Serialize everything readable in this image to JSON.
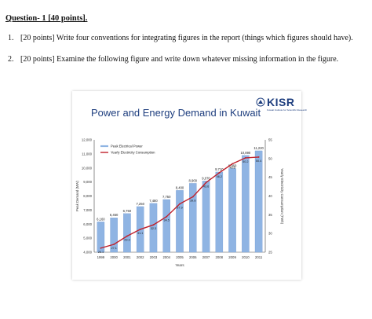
{
  "heading": "Question- 1 [40 points].",
  "questions": [
    {
      "num": "1.",
      "text": "[20 points] Write four conventions for integrating figures in the report (things which figures should have)."
    },
    {
      "num": "2.",
      "text": "[20 points] Examine the following figure and write down whatever missing information in the figure."
    }
  ],
  "figure": {
    "logo_text": "KISR",
    "logo_subtext": "Kuwait Institute for Scientific Research",
    "colors": {
      "bar": "#8fb4e3",
      "line": "#c0202a",
      "title": "#1f3f7f"
    }
  },
  "chart_data": {
    "type": "bar",
    "title": "Power and Energy Demand in Kuwait",
    "xlabel": "Years",
    "ylabel": "Peak Demand (MW)",
    "y2label": "Yearly Electricity Consumption (TWh)",
    "categories": [
      "1999",
      "2000",
      "2001",
      "2002",
      "2003",
      "2004",
      "2005",
      "2006",
      "2007",
      "2008",
      "2009",
      "2010",
      "2011"
    ],
    "ylim": [
      4000,
      12000
    ],
    "yticks": [
      "12,000",
      "11,000",
      "10,000",
      "9,000",
      "8,000",
      "7,000",
      "6,000",
      "5,000",
      "4,000"
    ],
    "y2lim": [
      25,
      55
    ],
    "y2ticks": [
      "55",
      "50",
      "45",
      "40",
      "35",
      "30",
      "25"
    ],
    "legend": {
      "placement": "top-left"
    },
    "series": [
      {
        "name": "Peak Electrical Power",
        "type": "bar",
        "values": [
          6160,
          6450,
          6750,
          7250,
          7480,
          7750,
          8400,
          8900,
          9070,
          9710,
          9960,
          10890,
          11220
        ],
        "labels": [
          "6,160",
          "6,450",
          "6,750",
          "7,250",
          "7,480",
          "7,750",
          "8,400",
          "8,900",
          "9,070",
          "9,710",
          "9,960",
          "10,890",
          "11,220"
        ]
      },
      {
        "name": "Yearly Electricity Consumption",
        "type": "line",
        "axis": "right",
        "values": [
          26.1,
          27.1,
          29.3,
          31.1,
          32.3,
          34.5,
          37.9,
          39.8,
          43.6,
          46.2,
          48.6,
          50.2,
          50.4
        ],
        "labels": [
          "26.1",
          "27.1",
          "29.3",
          "31.1",
          "32.3",
          "34.5",
          "37.9",
          "39.8",
          "43.6",
          "46.2",
          "48.6",
          "50.2",
          "50.4"
        ]
      }
    ]
  }
}
